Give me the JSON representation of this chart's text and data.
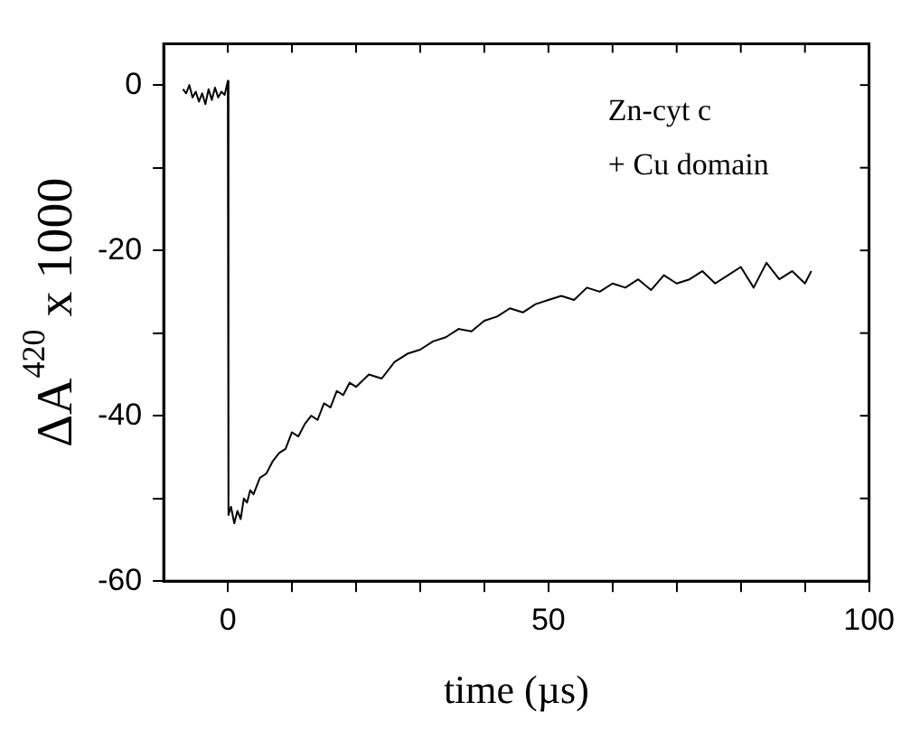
{
  "chart_data": {
    "type": "line",
    "xlabel": "time (µs)",
    "ylabel": "ΔA$^{420}$ x 1000",
    "annotations": [
      "Zn-cyt c",
      "+ Cu domain"
    ],
    "xlim": [
      -10,
      100
    ],
    "ylim": [
      -60,
      5
    ],
    "xticks": [
      0,
      {
        "value": 10,
        "label": null
      },
      {
        "value": 20,
        "label": null
      },
      {
        "value": 30,
        "label": null
      },
      {
        "value": 40,
        "label": null
      },
      50,
      {
        "value": 60,
        "label": null
      },
      {
        "value": 70,
        "label": null
      },
      {
        "value": 80,
        "label": null
      },
      {
        "value": 90,
        "label": null
      },
      100
    ],
    "yticks": [
      -60,
      {
        "value": -50,
        "label": null
      },
      -40,
      {
        "value": -30,
        "label": null
      },
      -20,
      {
        "value": -10,
        "label": null
      },
      0
    ],
    "grid": false,
    "legend": false,
    "marker": "none",
    "line_style": "solid",
    "series": [
      {
        "color": "#000000",
        "x": [
          -7,
          -6.5,
          -6,
          -5.5,
          -5,
          -4.5,
          -4,
          -3.5,
          -3,
          -2.5,
          -2,
          -1.5,
          -1,
          -0.5,
          0,
          0.1,
          0.5,
          1,
          1.5,
          2,
          2.5,
          3,
          3.5,
          4,
          5,
          6,
          7,
          8,
          9,
          10,
          11,
          12,
          13,
          14,
          15,
          16,
          17,
          18,
          19,
          20,
          22,
          24,
          26,
          28,
          30,
          32,
          34,
          36,
          38,
          40,
          42,
          44,
          46,
          48,
          50,
          52,
          54,
          56,
          58,
          60,
          62,
          64,
          66,
          68,
          70,
          72,
          74,
          76,
          78,
          80,
          82,
          84,
          86,
          88,
          90,
          91
        ],
        "values": [
          -0.5,
          -1,
          0,
          -1.5,
          -0.8,
          -2,
          -1,
          -2.3,
          -0.5,
          -1.8,
          -0.3,
          -1.5,
          -0.8,
          -1.2,
          0.5,
          -52,
          -51,
          -53,
          -51.5,
          -52.5,
          -50,
          -50.5,
          -49,
          -49.5,
          -47.5,
          -47,
          -45.5,
          -44.5,
          -44,
          -42,
          -42.5,
          -41,
          -40,
          -40.5,
          -38.5,
          -39,
          -37,
          -37.5,
          -36,
          -36.5,
          -35,
          -35.5,
          -33.5,
          -32.5,
          -32,
          -31,
          -30.5,
          -29.5,
          -29.8,
          -28.5,
          -28,
          -27,
          -27.5,
          -26.5,
          -26,
          -25.5,
          -26,
          -24.5,
          -25,
          -24,
          -24.5,
          -23.5,
          -24.8,
          -23,
          -24,
          -23.5,
          -22.5,
          -24,
          -23,
          -22,
          -24.5,
          -21.5,
          -23.5,
          -22.5,
          -24,
          -22.5
        ]
      }
    ]
  }
}
